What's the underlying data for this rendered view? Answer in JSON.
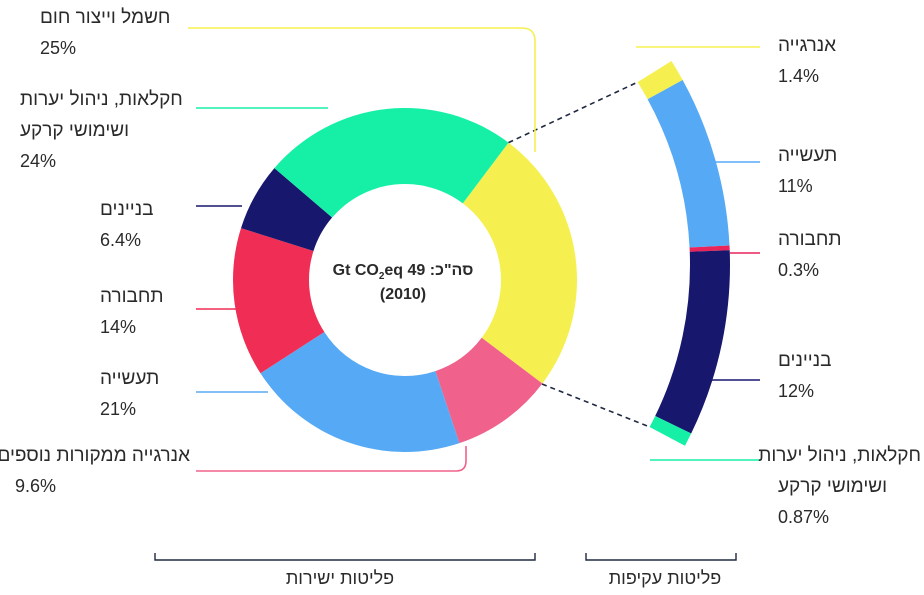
{
  "chart_data": {
    "type": "pie",
    "center": {
      "title": "סה\"כ: 49 Gt CO2eq",
      "year": "(2010)"
    },
    "direct": {
      "group_label": "פליטות ישירות",
      "slices": [
        {
          "name": "חשמל וייצור חום",
          "value": 25,
          "label": "25%",
          "color": "#f5f050"
        },
        {
          "name": "אנרגייה ממקורות נוספים",
          "value": 9.6,
          "label": "9.6%",
          "color": "#f0628c"
        },
        {
          "name": "תעשייה",
          "value": 21,
          "label": "21%",
          "color": "#56aaf5"
        },
        {
          "name": "תחבורה",
          "value": 14,
          "label": "14%",
          "color": "#ef2d55"
        },
        {
          "name": "בניינים",
          "value": 6.4,
          "label": "6.4%",
          "color": "#17176e"
        },
        {
          "name": "חקלאות, ניהול יערות ושימושי קרקע",
          "value": 24,
          "label": "24%",
          "color": "#16f0a6"
        }
      ]
    },
    "indirect": {
      "group_label": "פליטות עקיפות",
      "slices": [
        {
          "name": "אנרגייה",
          "value": 1.4,
          "label": "1.4%",
          "color": "#f5f050"
        },
        {
          "name": "תעשייה",
          "value": 11,
          "label": "11%",
          "color": "#56aaf5"
        },
        {
          "name": "תחבורה",
          "value": 0.3,
          "label": "0.3%",
          "color": "#e8245a"
        },
        {
          "name": "בניינים",
          "value": 12,
          "label": "12%",
          "color": "#17176e"
        },
        {
          "name": "חקלאות, ניהול יערות ושימושי קרקע",
          "value": 0.87,
          "label": "0.87%",
          "color": "#16f0a6"
        }
      ]
    }
  },
  "labels": {
    "elec": {
      "line1": "חשמל וייצור חום",
      "pct": "25%"
    },
    "agri": {
      "line1": "חקלאות, ניהול יערות",
      "line2": "ושימושי קרקע",
      "pct": "24%"
    },
    "bldg": {
      "line1": "בניינים",
      "pct": "6.4%"
    },
    "trans": {
      "line1": "תחבורה",
      "pct": "14%"
    },
    "ind": {
      "line1": "תעשייה",
      "pct": "21%"
    },
    "other": {
      "line1": "אנרגייה ממקורות נוספים",
      "pct": "9.6%"
    },
    "r_energy": {
      "line1": "אנרגייה",
      "pct": "1.4%"
    },
    "r_ind": {
      "line1": "תעשייה",
      "pct": "11%"
    },
    "r_trans": {
      "line1": "תחבורה",
      "pct": "0.3%"
    },
    "r_bldg": {
      "line1": "בניינים",
      "pct": "12%"
    },
    "r_agri": {
      "line1": "חקלאות, ניהול יערות",
      "line2": "ושימושי קרקע",
      "pct": "0.87%"
    }
  }
}
